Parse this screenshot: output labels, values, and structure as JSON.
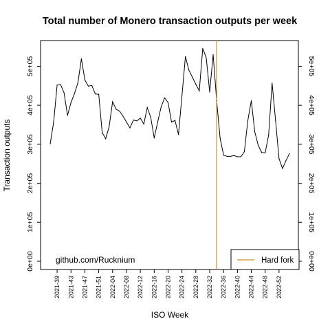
{
  "chart_data": {
    "type": "line",
    "title": "Total number of Monero transaction outputs per week",
    "xlabel": "ISO Week",
    "ylabel": "Transaction outputs",
    "ylim": [
      0,
      575000
    ],
    "yticks": [
      0,
      100000,
      200000,
      300000,
      400000,
      500000
    ],
    "ytick_labels": [
      "0e+00",
      "1e+05",
      "2e+05",
      "3e+05",
      "4e+05",
      "5e+05"
    ],
    "xtick_labels": [
      "2021-39",
      "2021-43",
      "2021-47",
      "2021-51",
      "2022-04",
      "2022-08",
      "2022-12",
      "2022-16",
      "2022-20",
      "2022-24",
      "2022-28",
      "2022-32",
      "2022-36",
      "2022-40",
      "2022-44",
      "2022-48",
      "2022-52"
    ],
    "xtick_first_index": 2,
    "xtick_step": 4,
    "series": [
      {
        "color": "#000000",
        "values": [
          301000,
          357000,
          452000,
          453000,
          432000,
          374000,
          407000,
          430000,
          458000,
          519000,
          465000,
          449000,
          451000,
          429000,
          428000,
          330000,
          314000,
          345000,
          409000,
          390000,
          385000,
          372000,
          357000,
          342000,
          362000,
          360000,
          367000,
          352000,
          394000,
          369000,
          316000,
          357000,
          396000,
          419000,
          407000,
          357000,
          361000,
          325000,
          424000,
          525000,
          490000,
          472000,
          454000,
          437000,
          546000,
          522000,
          434000,
          530000,
          412000,
          316000,
          272000,
          269000,
          269000,
          271000,
          268000,
          268000,
          281000,
          361000,
          412000,
          332000,
          297000,
          279000,
          278000,
          324000,
          457000,
          361000,
          263000,
          238000,
          258000,
          276000
        ]
      }
    ],
    "event": {
      "label": "Hard fork",
      "index": 48,
      "color": "#cc8f2e"
    },
    "legend_position": "bottom-right",
    "annotation": "github.com/Rucknium",
    "grid": false
  }
}
